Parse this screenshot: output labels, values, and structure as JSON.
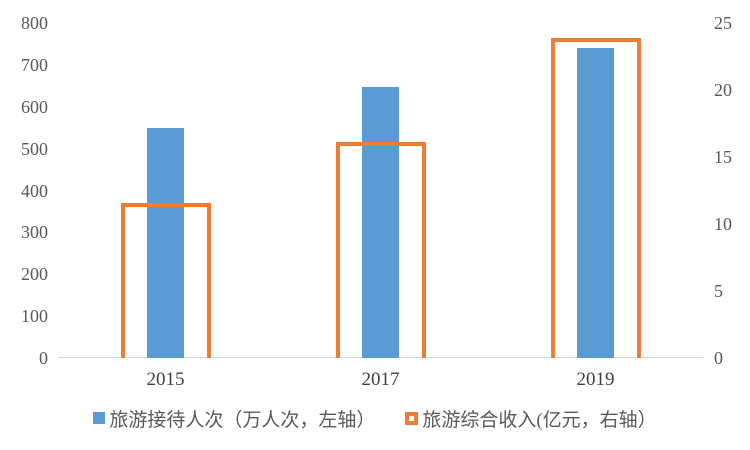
{
  "chart_data": {
    "type": "bar",
    "title": "",
    "categories": [
      "2015",
      "2017",
      "2019"
    ],
    "series": [
      {
        "name": "旅游接待人次（万人次，左轴）",
        "axis": "left",
        "values": [
          550,
          647,
          740
        ],
        "color": "#5b9bd5",
        "style": "filled"
      },
      {
        "name": "旅游综合收入(亿元，右轴）",
        "axis": "right",
        "values": [
          11.6,
          16.1,
          23.9
        ],
        "color": "#ed7d31",
        "style": "outlined"
      }
    ],
    "left_axis": {
      "min": 0,
      "max": 800,
      "step": 100,
      "tick_labels": [
        "0",
        "100",
        "200",
        "300",
        "400",
        "500",
        "600",
        "700",
        "800"
      ]
    },
    "right_axis": {
      "min": 0,
      "max": 25,
      "step": 5,
      "tick_labels": [
        "0",
        "5",
        "10",
        "15",
        "20",
        "25"
      ]
    },
    "grid": false,
    "legend_position": "bottom",
    "colors": {
      "bar_blue": "#5b9bd5",
      "bar_orange": "#ed7d31",
      "axis_line": "#d9d9d9",
      "tick_text": "#595959",
      "category_text": "#404040"
    }
  }
}
